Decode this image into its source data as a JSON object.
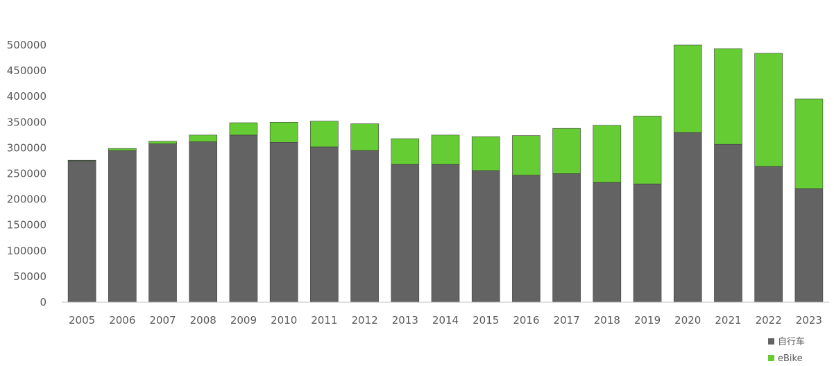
{
  "chart_data": {
    "type": "bar",
    "stacked": true,
    "categories": [
      "2005",
      "2006",
      "2007",
      "2008",
      "2009",
      "2010",
      "2011",
      "2012",
      "2013",
      "2014",
      "2015",
      "2016",
      "2017",
      "2018",
      "2019",
      "2020",
      "2021",
      "2022",
      "2023"
    ],
    "series": [
      {
        "name": "自行车",
        "color": "#636363",
        "values": [
          275000,
          295000,
          308000,
          312000,
          325000,
          311000,
          302000,
          295000,
          268000,
          268000,
          256000,
          247000,
          250000,
          233000,
          230000,
          330000,
          307000,
          264000,
          221000
        ]
      },
      {
        "name": "eBike",
        "color": "#66cc33",
        "values": [
          1000,
          4000,
          5000,
          13000,
          24000,
          39000,
          50000,
          52000,
          50000,
          57000,
          66000,
          77000,
          88000,
          111000,
          132000,
          170000,
          186000,
          220000,
          174000
        ]
      }
    ],
    "ylim": [
      0,
      500000
    ],
    "yticks": [
      0,
      50000,
      100000,
      150000,
      200000,
      250000,
      300000,
      350000,
      400000,
      450000,
      500000
    ],
    "grid": false,
    "legend": "bottom-right",
    "title": "",
    "xlabel": "",
    "ylabel": ""
  }
}
